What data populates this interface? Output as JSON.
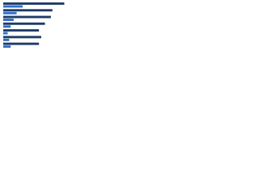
{
  "chart_data": {
    "type": "hbar",
    "categories": [
      null,
      null,
      null,
      null,
      null,
      null,
      null
    ],
    "series": [
      {
        "color": "#1f3b68",
        "values": [
          82,
          66,
          64,
          56,
          48,
          51,
          48
        ]
      },
      {
        "color": "#2f6fc4",
        "values": [
          26,
          18,
          14,
          10,
          6,
          8,
          10
        ]
      }
    ],
    "xlim": [
      0,
      100
    ]
  }
}
